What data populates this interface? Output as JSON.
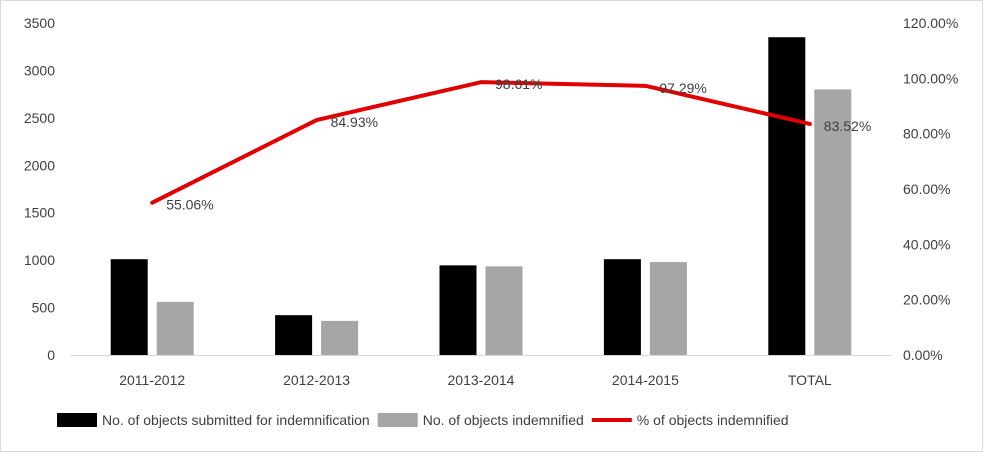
{
  "chart_data": {
    "type": "bar",
    "categories": [
      "2011-2012",
      "2012-2013",
      "2013-2014",
      "2014-2015",
      "TOTAL"
    ],
    "series": [
      {
        "name": "No. of objects submitted for indemnification",
        "type": "bar",
        "axis": "left",
        "color": "#000000",
        "values": [
          1010,
          420,
          945,
          1010,
          3350
        ]
      },
      {
        "name": "No. of objects indemnified",
        "type": "bar",
        "axis": "left",
        "color": "#a6a6a6",
        "values": [
          560,
          360,
          935,
          980,
          2800
        ]
      },
      {
        "name": "% of objects indemnified",
        "type": "line",
        "axis": "right",
        "color": "#e00000",
        "values": [
          55.06,
          84.93,
          98.61,
          97.29,
          83.52
        ],
        "data_labels": [
          "55.06%",
          "84.93%",
          "98.61%",
          "97.29%",
          "83.52%"
        ]
      }
    ],
    "y_left": {
      "min": 0,
      "max": 3500,
      "ticks": [
        "0",
        "500",
        "1000",
        "1500",
        "2000",
        "2500",
        "3000",
        "3500"
      ]
    },
    "y_right": {
      "min": 0,
      "max": 120,
      "ticks": [
        "0.00%",
        "20.00%",
        "40.00%",
        "60.00%",
        "80.00%",
        "100.00%",
        "120.00%"
      ]
    },
    "grid": false,
    "legend_position": "bottom"
  }
}
